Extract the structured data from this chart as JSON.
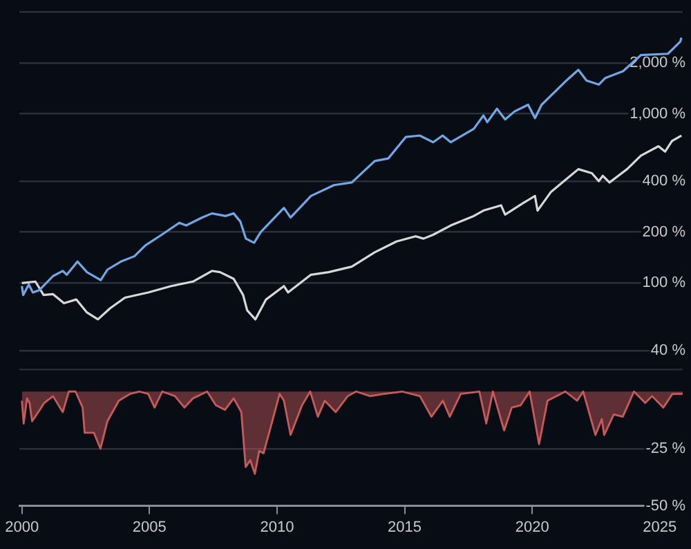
{
  "chart_data": [
    {
      "type": "line",
      "log": "y",
      "xlim": [
        1999.9,
        2025.9
      ],
      "ylim": [
        40,
        4000
      ],
      "grid": "y",
      "tick_labels": "y",
      "yticks": [
        {
          "value": 40,
          "label": "40 %"
        },
        {
          "value": 100,
          "label": "100 %"
        },
        {
          "value": 200,
          "label": "200 %"
        },
        {
          "value": 400,
          "label": "400 %"
        },
        {
          "value": 1000,
          "label": "1,000 %"
        },
        {
          "value": 2000,
          "label": "2,000 %"
        },
        {
          "value": 4000,
          "label": null
        }
      ],
      "series": [
        {
          "color": "#6ea8e6",
          "x": [
            2000.0,
            2000.05,
            2000.27,
            2000.43,
            2000.69,
            2001.22,
            2001.6,
            2001.76,
            2002.18,
            2002.55,
            2003.09,
            2003.35,
            2003.88,
            2004.41,
            2004.84,
            2005.48,
            2006.17,
            2006.44,
            2007.07,
            2007.45,
            2007.98,
            2008.3,
            2008.56,
            2008.78,
            2009.1,
            2009.36,
            2010.27,
            2010.53,
            2011.33,
            2012.23,
            2012.93,
            2013.83,
            2014.36,
            2015.05,
            2015.59,
            2016.12,
            2016.49,
            2016.81,
            2017.71,
            2018.09,
            2018.24,
            2018.62,
            2018.94,
            2019.31,
            2019.84,
            2020.11,
            2020.37,
            2021.28,
            2021.81,
            2022.13,
            2022.61,
            2022.87,
            2023.56,
            2024.26,
            2025.32,
            2025.8,
            2025.85
          ],
          "values": [
            96,
            85,
            98,
            88,
            91,
            110,
            118,
            112,
            134,
            116,
            104,
            120,
            134,
            144,
            167,
            193,
            227,
            219,
            244,
            258,
            249,
            258,
            231,
            183,
            173,
            200,
            278,
            244,
            327,
            379,
            393,
            526,
            545,
            730,
            744,
            679,
            744,
            679,
            815,
            978,
            893,
            1071,
            926,
            1033,
            1131,
            943,
            1131,
            1542,
            1818,
            1571,
            1488,
            1629,
            1785,
            2222,
            2263,
            2667,
            2816
          ]
        },
        {
          "color": "#d8d8d8",
          "x": [
            2000.0,
            2000.53,
            2000.85,
            2001.22,
            2001.65,
            2002.13,
            2002.55,
            2002.98,
            2003.46,
            2004.04,
            2004.95,
            2005.85,
            2006.7,
            2007.45,
            2007.77,
            2008.3,
            2008.67,
            2008.83,
            2009.15,
            2009.57,
            2010.27,
            2010.43,
            2011.33,
            2012.02,
            2012.93,
            2013.83,
            2014.68,
            2015.43,
            2015.74,
            2016.12,
            2016.81,
            2017.71,
            2018.09,
            2018.78,
            2018.94,
            2019.68,
            2020.11,
            2020.21,
            2020.74,
            2021.81,
            2022.34,
            2022.61,
            2022.77,
            2023.03,
            2023.72,
            2024.26,
            2024.95,
            2025.21,
            2025.48,
            2025.85
          ],
          "values": [
            100,
            102,
            85,
            86,
            76,
            80,
            67,
            61,
            71,
            82,
            88,
            96,
            102,
            118,
            116,
            106,
            85,
            69,
            61,
            80,
            96,
            88,
            112,
            116,
            125,
            152,
            176,
            189,
            183,
            193,
            219,
            249,
            268,
            288,
            254,
            299,
            327,
            268,
            346,
            471,
            446,
            400,
            430,
            393,
            471,
            566,
            643,
            598,
            691,
            744
          ]
        }
      ]
    },
    {
      "type": "area",
      "xlim": [
        1999.9,
        2025.9
      ],
      "ylim": [
        -50,
        10
      ],
      "grid": "y",
      "xticks": [
        2000,
        2005,
        2010,
        2015,
        2020,
        2025
      ],
      "yticks": [
        {
          "value": -25,
          "label": "-25 %"
        },
        {
          "value": -50,
          "label": "-50 %"
        }
      ],
      "series": [
        {
          "color": "#c85a5a",
          "x": [
            2000.0,
            2000.07,
            2000.2,
            2000.3,
            2000.4,
            2000.7,
            2000.87,
            2001.22,
            2001.6,
            2001.84,
            2002.1,
            2002.38,
            2002.46,
            2002.82,
            2003.08,
            2003.35,
            2003.8,
            2004.24,
            2004.6,
            2004.95,
            2005.2,
            2005.5,
            2006.0,
            2006.37,
            2006.7,
            2007.26,
            2007.6,
            2007.96,
            2008.3,
            2008.6,
            2008.77,
            2008.95,
            2009.13,
            2009.3,
            2009.47,
            2009.74,
            2010.1,
            2010.27,
            2010.53,
            2010.98,
            2011.3,
            2011.6,
            2011.87,
            2012.3,
            2012.77,
            2013.1,
            2013.65,
            2014.2,
            2014.9,
            2015.6,
            2016.05,
            2016.5,
            2016.77,
            2017.2,
            2017.93,
            2018.2,
            2018.46,
            2018.9,
            2019.2,
            2019.55,
            2019.9,
            2020.27,
            2020.6,
            2021.3,
            2021.76,
            2022.0,
            2022.48,
            2022.73,
            2022.82,
            2023.2,
            2023.55,
            2023.99,
            2024.43,
            2024.7,
            2025.14,
            2025.5,
            2025.9
          ],
          "values": [
            -4,
            -14,
            -3,
            -5,
            -13,
            -8,
            -5,
            -2,
            -9,
            0,
            0,
            -7,
            -18,
            -18,
            -25,
            -13,
            -4,
            -1,
            0,
            -1,
            -7,
            0,
            -2,
            -7,
            -3,
            0,
            -6,
            -8,
            -3,
            -9,
            -33,
            -30,
            -36,
            -26,
            -27,
            -16,
            -1,
            -4,
            -19,
            -6,
            0,
            -11,
            -4,
            -9,
            -2,
            0,
            -2,
            -1,
            0,
            -2,
            -11,
            -4,
            -11,
            -1,
            0,
            -14,
            0,
            -17,
            -7,
            -6,
            0,
            -23,
            -4,
            0,
            -4,
            0,
            -19,
            -12,
            -19,
            -10,
            -11,
            0,
            -5,
            -2,
            -7,
            -1,
            -1
          ]
        }
      ]
    }
  ]
}
